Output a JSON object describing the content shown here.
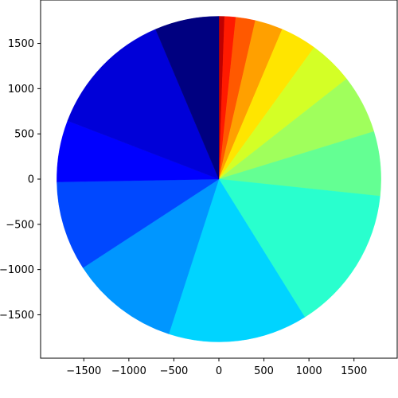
{
  "chart_data": {
    "type": "pie",
    "center": [
      0,
      0
    ],
    "radius": 1800,
    "start_angle_deg": 90,
    "direction": "clockwise",
    "slices": [
      {
        "start_deg": 0,
        "end_deg": 2,
        "color": "#c00000"
      },
      {
        "start_deg": 2,
        "end_deg": 6,
        "color": "#ff1a00"
      },
      {
        "start_deg": 6,
        "end_deg": 13,
        "color": "#ff5900"
      },
      {
        "start_deg": 13,
        "end_deg": 23,
        "color": "#ffa000"
      },
      {
        "start_deg": 23,
        "end_deg": 36,
        "color": "#ffe500"
      },
      {
        "start_deg": 36,
        "end_deg": 52,
        "color": "#d4ff26"
      },
      {
        "start_deg": 52,
        "end_deg": 73,
        "color": "#a0ff5c"
      },
      {
        "start_deg": 73,
        "end_deg": 96,
        "color": "#64ff93"
      },
      {
        "start_deg": 96,
        "end_deg": 148,
        "color": "#29ffce"
      },
      {
        "start_deg": 148,
        "end_deg": 198,
        "color": "#00d4ff"
      },
      {
        "start_deg": 198,
        "end_deg": 237,
        "color": "#0096ff"
      },
      {
        "start_deg": 237,
        "end_deg": 269,
        "color": "#0048ff"
      },
      {
        "start_deg": 269,
        "end_deg": 291,
        "color": "#0000ff"
      },
      {
        "start_deg": 291,
        "end_deg": 337,
        "color": "#0000d8"
      },
      {
        "start_deg": 337,
        "end_deg": 360,
        "color": "#000080"
      }
    ],
    "xlim": [
      -1980,
      1980
    ],
    "ylim": [
      -1980,
      1980
    ],
    "xticks": [
      -1500,
      -1000,
      -500,
      0,
      500,
      1000,
      1500
    ],
    "yticks": [
      1500,
      1000,
      500,
      0,
      -500,
      -1000,
      -1500
    ],
    "xtick_labels": [
      "−1500",
      "−1000",
      "−500",
      "0",
      "500",
      "1000",
      "1500"
    ],
    "ytick_labels": [
      "1500",
      "1000",
      "500",
      "0",
      "−500",
      "−1000",
      "−1500"
    ],
    "title": "",
    "xlabel": "",
    "ylabel": "",
    "legend": "none",
    "grid": false
  }
}
